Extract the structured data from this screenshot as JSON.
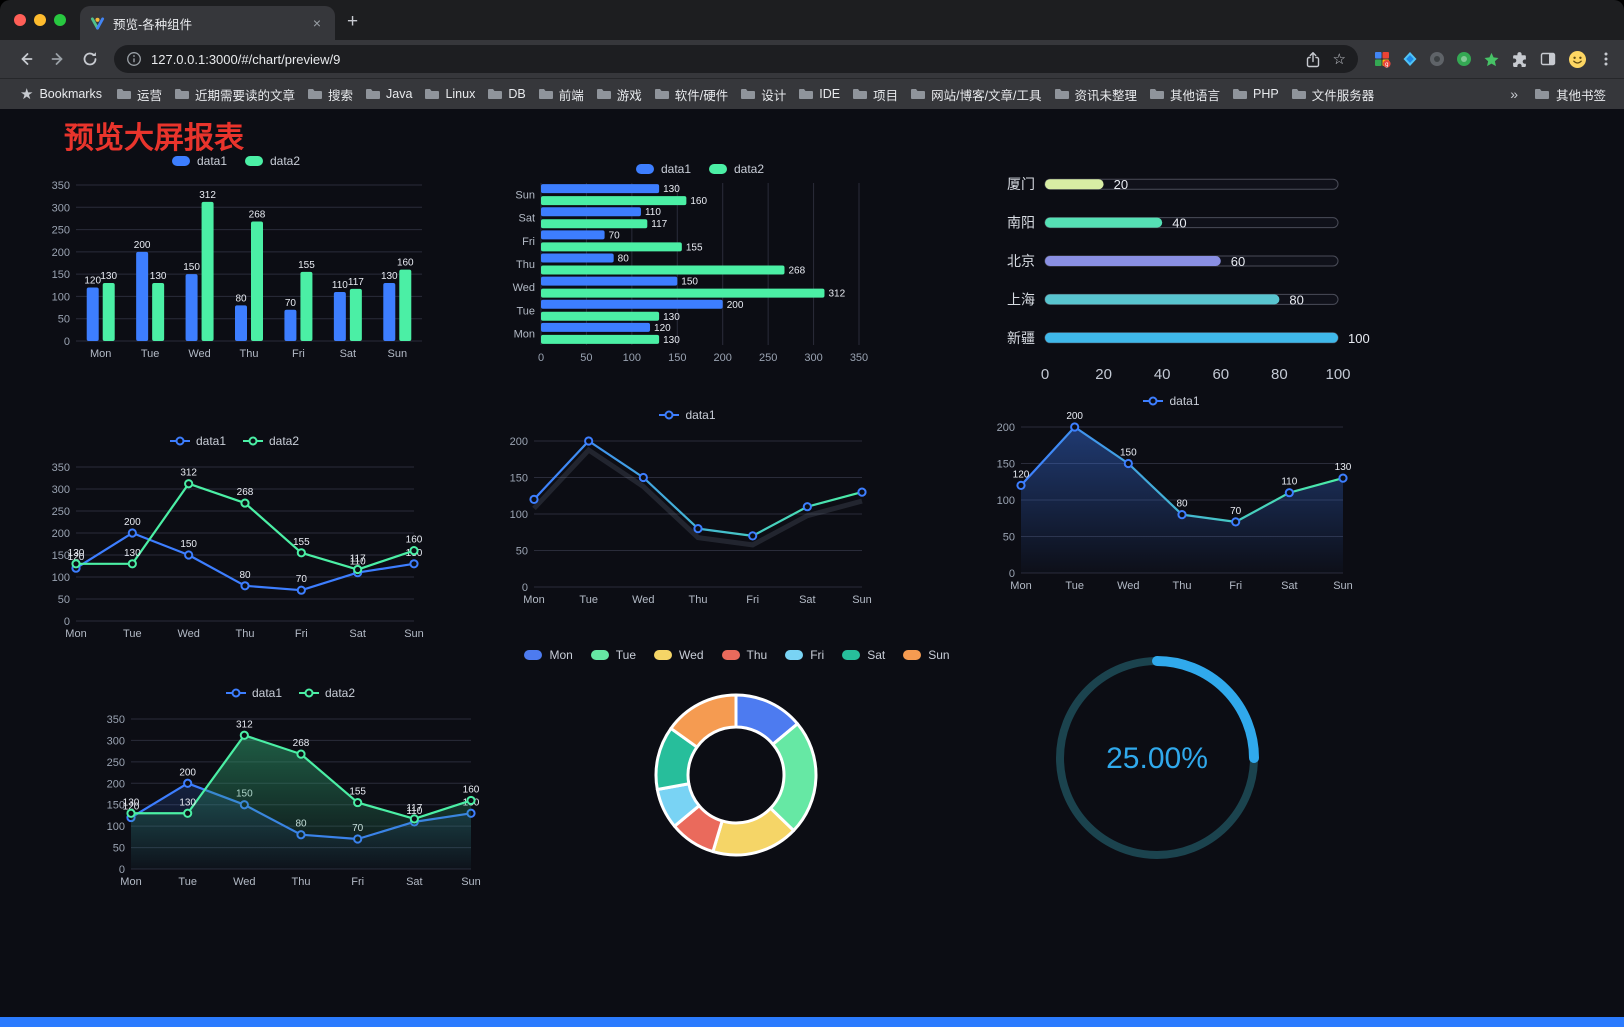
{
  "browser": {
    "tab": {
      "title": "预览-各种组件",
      "close": "×",
      "new_tab": "+"
    },
    "url": "127.0.0.1:3000/#/chart/preview/9",
    "bookmarks": {
      "label": "Bookmarks",
      "items": [
        "运营",
        "近期需要读的文章",
        "搜索",
        "Java",
        "Linux",
        "DB",
        "前端",
        "游戏",
        "软件/硬件",
        "设计",
        "IDE",
        "项目",
        "网站/博客/文章/工具",
        "资讯未整理",
        "其他语言",
        "PHP",
        "文件服务器"
      ],
      "overflow": "»",
      "other": "其他书签"
    }
  },
  "page": {
    "title": "预览大屏报表",
    "title_color": "#e9342c",
    "footer_color": "#2b7bfe"
  },
  "chart_data": [
    {
      "el": "chart1",
      "type": "bar",
      "legend": true,
      "labels": true,
      "categories": [
        "Mon",
        "Tue",
        "Wed",
        "Thu",
        "Fri",
        "Sat",
        "Sun"
      ],
      "ylim": [
        0,
        350
      ],
      "ytick": 50,
      "series": [
        {
          "name": "data1",
          "color": "#3D7EFF",
          "values": [
            120,
            200,
            150,
            80,
            70,
            110,
            130
          ]
        },
        {
          "name": "data2",
          "color": "#4BEFA5",
          "values": [
            130,
            130,
            312,
            268,
            155,
            117,
            160
          ]
        }
      ]
    },
    {
      "el": "chart2",
      "type": "hbar",
      "legend": true,
      "labels": true,
      "categories": [
        "Mon",
        "Tue",
        "Wed",
        "Thu",
        "Fri",
        "Sat",
        "Sun"
      ],
      "xlim": [
        0,
        350
      ],
      "xtick": 50,
      "series": [
        {
          "name": "data1",
          "color": "#3D7EFF",
          "values": [
            120,
            200,
            150,
            80,
            70,
            110,
            130
          ]
        },
        {
          "name": "data2",
          "color": "#4BEFA5",
          "values": [
            130,
            130,
            312,
            268,
            155,
            117,
            160
          ]
        }
      ]
    },
    {
      "el": "chart3",
      "type": "capsule",
      "max": 100,
      "ticks": [
        0,
        20,
        40,
        60,
        80,
        100
      ],
      "rows": [
        {
          "label": "厦门",
          "value": 20,
          "color": "#D8EDA4"
        },
        {
          "label": "南阳",
          "value": 40,
          "color": "#55E0B5"
        },
        {
          "label": "北京",
          "value": 60,
          "color": "#8A8FE3"
        },
        {
          "label": "上海",
          "value": 80,
          "color": "#58C4CF"
        },
        {
          "label": "新疆",
          "value": 100,
          "color": "#3FB8EA"
        }
      ]
    },
    {
      "el": "chart4",
      "type": "line",
      "legend": true,
      "labels": true,
      "categories": [
        "Mon",
        "Tue",
        "Wed",
        "Thu",
        "Fri",
        "Sat",
        "Sun"
      ],
      "ylim": [
        0,
        350
      ],
      "ytick": 50,
      "series": [
        {
          "name": "data1",
          "color": "#3D7EFF",
          "values": [
            120,
            200,
            150,
            80,
            70,
            110,
            130
          ]
        },
        {
          "name": "data2",
          "color": "#4BEFA5",
          "values": [
            130,
            130,
            312,
            268,
            155,
            117,
            160
          ]
        }
      ]
    },
    {
      "el": "chart5",
      "type": "line",
      "legend": true,
      "labels": false,
      "categories": [
        "Mon",
        "Tue",
        "Wed",
        "Thu",
        "Fri",
        "Sat",
        "Sun"
      ],
      "ylim": [
        0,
        200
      ],
      "ytick": 50,
      "series": [
        {
          "name": "data1",
          "color": "#3D7EFF",
          "gradient": "#4BEFA5",
          "shadow": true,
          "values": [
            120,
            200,
            150,
            80,
            70,
            110,
            130
          ]
        }
      ]
    },
    {
      "el": "chart6",
      "type": "line",
      "legend": true,
      "labels": true,
      "categories": [
        "Mon",
        "Tue",
        "Wed",
        "Thu",
        "Fri",
        "Sat",
        "Sun"
      ],
      "ylim": [
        0,
        200
      ],
      "ytick": 50,
      "series": [
        {
          "name": "data1",
          "color": "#3D7EFF",
          "gradient": "#4BEFA5",
          "area": true,
          "areaColor": "#3D7EFF",
          "areaOpacity": 0.4,
          "values": [
            120,
            200,
            150,
            80,
            70,
            110,
            130
          ]
        }
      ]
    },
    {
      "el": "chart7",
      "type": "line",
      "legend": true,
      "labels": true,
      "categories": [
        "Mon",
        "Tue",
        "Wed",
        "Thu",
        "Fri",
        "Sat",
        "Sun"
      ],
      "ylim": [
        0,
        350
      ],
      "ytick": 50,
      "series": [
        {
          "name": "data1",
          "color": "#3D7EFF",
          "area": true,
          "areaColor": "#3D7EFF",
          "areaOpacity": 0.18,
          "values": [
            120,
            200,
            150,
            80,
            70,
            110,
            130
          ]
        },
        {
          "name": "data2",
          "color": "#4BEFA5",
          "area": true,
          "areaColor": "#2E9E6C",
          "areaOpacity": 0.55,
          "values": [
            130,
            130,
            312,
            268,
            155,
            117,
            160
          ]
        }
      ]
    },
    {
      "el": "chart8",
      "type": "pie",
      "legend": true,
      "inner_ratio": 0.6,
      "items": [
        {
          "label": "Mon",
          "value": 120,
          "color": "#4D7BF0"
        },
        {
          "label": "Tue",
          "value": 200,
          "color": "#66E8A4"
        },
        {
          "label": "Wed",
          "value": 150,
          "color": "#F5D567"
        },
        {
          "label": "Thu",
          "value": 80,
          "color": "#EA6A5C"
        },
        {
          "label": "Fri",
          "value": 70,
          "color": "#79D3F4"
        },
        {
          "label": "Sat",
          "value": 110,
          "color": "#27BE9B"
        },
        {
          "label": "Sun",
          "value": 130,
          "color": "#F59B51"
        }
      ]
    },
    {
      "el": "chart9",
      "type": "gauge",
      "value": 25,
      "label": "25.00%",
      "color": "#30A9EC",
      "track": "#1B434E"
    }
  ]
}
